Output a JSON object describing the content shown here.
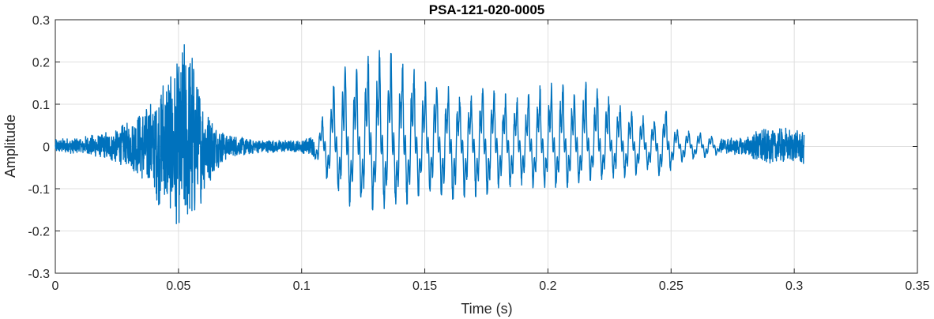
{
  "chart_data": {
    "type": "line",
    "title": "PSA-121-020-0005",
    "xlabel": "Time (s)",
    "ylabel": "Amplitude",
    "xlim": [
      0,
      0.35
    ],
    "ylim": [
      -0.3,
      0.3
    ],
    "xticks": [
      0,
      0.05,
      0.1,
      0.15,
      0.2,
      0.25,
      0.3,
      0.35
    ],
    "xtick_labels": [
      "0",
      "0.05",
      "0.1",
      "0.15",
      "0.2",
      "0.25",
      "0.3",
      "0.35"
    ],
    "yticks": [
      -0.3,
      -0.2,
      -0.1,
      0,
      0.1,
      0.2,
      0.3
    ],
    "ytick_labels": [
      "-0.3",
      "-0.2",
      "-0.1",
      "0",
      "0.1",
      "0.2",
      "0.3"
    ],
    "grid": true,
    "line_color": "#0072BD",
    "signal_duration_s": 0.304,
    "series": [
      {
        "x": [
          0,
          0.01,
          0.02,
          0.03,
          0.035,
          0.04,
          0.045,
          0.048,
          0.05,
          0.053,
          0.055,
          0.057,
          0.06,
          0.065,
          0.07,
          0.08,
          0.09,
          0.1,
          0.105,
          0.108,
          0.112,
          0.118,
          0.122,
          0.125,
          0.128,
          0.133,
          0.138,
          0.142,
          0.146,
          0.15,
          0.155,
          0.16,
          0.165,
          0.17,
          0.175,
          0.18,
          0.185,
          0.19,
          0.195,
          0.2,
          0.205,
          0.21,
          0.213,
          0.216,
          0.22,
          0.225,
          0.23,
          0.235,
          0.24,
          0.245,
          0.248,
          0.252,
          0.26,
          0.27,
          0.28,
          0.286,
          0.29,
          0.295,
          0.3,
          0.304
        ],
        "envelope_max": [
          0.018,
          0.022,
          0.035,
          0.06,
          0.09,
          0.13,
          0.19,
          0.2,
          0.22,
          0.265,
          0.27,
          0.2,
          0.12,
          0.06,
          0.03,
          0.018,
          0.015,
          0.015,
          0.03,
          0.06,
          0.14,
          0.2,
          0.18,
          0.2,
          0.22,
          0.23,
          0.215,
          0.21,
          0.18,
          0.16,
          0.16,
          0.14,
          0.12,
          0.13,
          0.14,
          0.13,
          0.12,
          0.11,
          0.14,
          0.15,
          0.15,
          0.13,
          0.16,
          0.15,
          0.14,
          0.12,
          0.1,
          0.08,
          0.07,
          0.06,
          0.1,
          0.04,
          0.035,
          0.02,
          0.02,
          0.045,
          0.04,
          0.05,
          0.04,
          0.035
        ],
        "envelope_min": [
          -0.015,
          -0.018,
          -0.03,
          -0.05,
          -0.08,
          -0.12,
          -0.17,
          -0.18,
          -0.2,
          -0.19,
          -0.22,
          -0.17,
          -0.12,
          -0.06,
          -0.03,
          -0.018,
          -0.015,
          -0.015,
          -0.025,
          -0.06,
          -0.09,
          -0.13,
          -0.16,
          -0.14,
          -0.15,
          -0.15,
          -0.145,
          -0.14,
          -0.12,
          -0.11,
          -0.1,
          -0.14,
          -0.12,
          -0.12,
          -0.13,
          -0.1,
          -0.1,
          -0.09,
          -0.1,
          -0.1,
          -0.1,
          -0.095,
          -0.09,
          -0.08,
          -0.08,
          -0.075,
          -0.075,
          -0.07,
          -0.055,
          -0.075,
          -0.07,
          -0.04,
          -0.03,
          -0.02,
          -0.02,
          -0.045,
          -0.04,
          -0.04,
          -0.04,
          -0.045
        ]
      }
    ]
  }
}
